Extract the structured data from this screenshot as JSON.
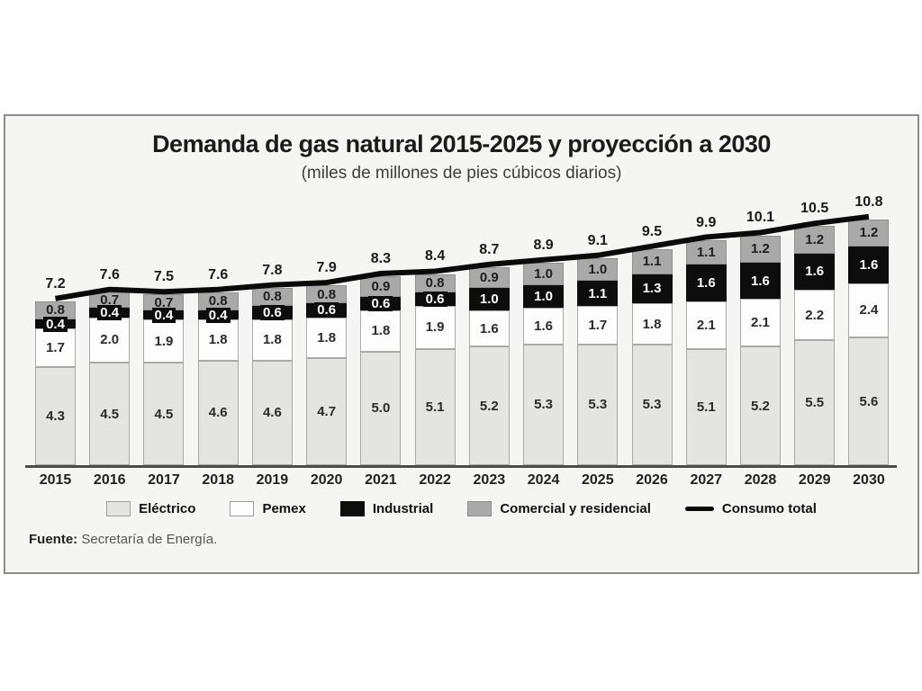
{
  "header": {
    "title": "Demanda de gas natural 2015-2025 y proyección a 2030",
    "subtitle": "(miles de millones de pies cúbicos diarios)"
  },
  "source": {
    "label": "Fuente:",
    "text": "Secretaría de Energía."
  },
  "legend": {
    "items": [
      {
        "name": "Eléctrico",
        "type": "swatch",
        "color": "#e4e4e2",
        "border": "#9c9c9c"
      },
      {
        "name": "Pemex",
        "type": "swatch",
        "color": "#fdfdfd",
        "border": "#9c9c9c"
      },
      {
        "name": "Industrial",
        "type": "swatch",
        "color": "#0d0d0d",
        "border": "#0d0d0d"
      },
      {
        "name": "Comercial y residencial",
        "type": "swatch",
        "color": "#a9a9a9",
        "border": "#8d8d8d"
      },
      {
        "name": "Consumo total",
        "type": "line",
        "color": "#0a0a0a"
      }
    ]
  },
  "chart_data": {
    "type": "bar",
    "stacked": true,
    "title": "Demanda de gas natural 2015-2025 y proyección a 2030",
    "subtitle": "(miles de millones de pies cúbicos diarios)",
    "xlabel": "",
    "ylabel": "miles de millones de pies cúbicos diarios",
    "ylim": [
      0,
      11.2
    ],
    "grid": false,
    "legend_position": "bottom",
    "categories": [
      "2015",
      "2016",
      "2017",
      "2018",
      "2019",
      "2020",
      "2021",
      "2022",
      "2023",
      "2024",
      "2025",
      "2026",
      "2027",
      "2028",
      "2029",
      "2030"
    ],
    "series": [
      {
        "name": "Eléctrico",
        "color": "#e4e4e2",
        "border": "#a8a8a8",
        "label_color": "#2a2a2a",
        "values": [
          4.3,
          4.5,
          4.5,
          4.6,
          4.6,
          4.7,
          5.0,
          5.1,
          5.2,
          5.3,
          5.3,
          5.3,
          5.1,
          5.2,
          5.5,
          5.6
        ]
      },
      {
        "name": "Pemex",
        "color": "#fdfdfd",
        "border": "#aaaaaa",
        "label_color": "#2a2a2a",
        "values": [
          1.7,
          2.0,
          1.9,
          1.8,
          1.8,
          1.8,
          1.8,
          1.9,
          1.6,
          1.6,
          1.7,
          1.8,
          2.1,
          2.1,
          2.2,
          2.4
        ]
      },
      {
        "name": "Industrial",
        "color": "#0d0d0d",
        "border": "#0d0d0d",
        "label_color": "#ffffff",
        "values": [
          0.4,
          0.4,
          0.4,
          0.4,
          0.6,
          0.6,
          0.6,
          0.6,
          1.0,
          1.0,
          1.1,
          1.3,
          1.6,
          1.6,
          1.6,
          1.6
        ]
      },
      {
        "name": "Comercial y residencial",
        "color": "#a9a9a9",
        "border": "#8f8f8f",
        "label_color": "#1e1e1e",
        "values": [
          0.8,
          0.7,
          0.7,
          0.8,
          0.8,
          0.8,
          0.9,
          0.8,
          0.9,
          1.0,
          1.0,
          1.1,
          1.1,
          1.2,
          1.2,
          1.2
        ]
      }
    ],
    "line": {
      "name": "Consumo total",
      "color": "#0a0a0a",
      "values": [
        7.2,
        7.6,
        7.5,
        7.6,
        7.8,
        7.9,
        8.3,
        8.4,
        8.7,
        8.9,
        9.1,
        9.5,
        9.9,
        10.1,
        10.5,
        10.8
      ]
    }
  }
}
